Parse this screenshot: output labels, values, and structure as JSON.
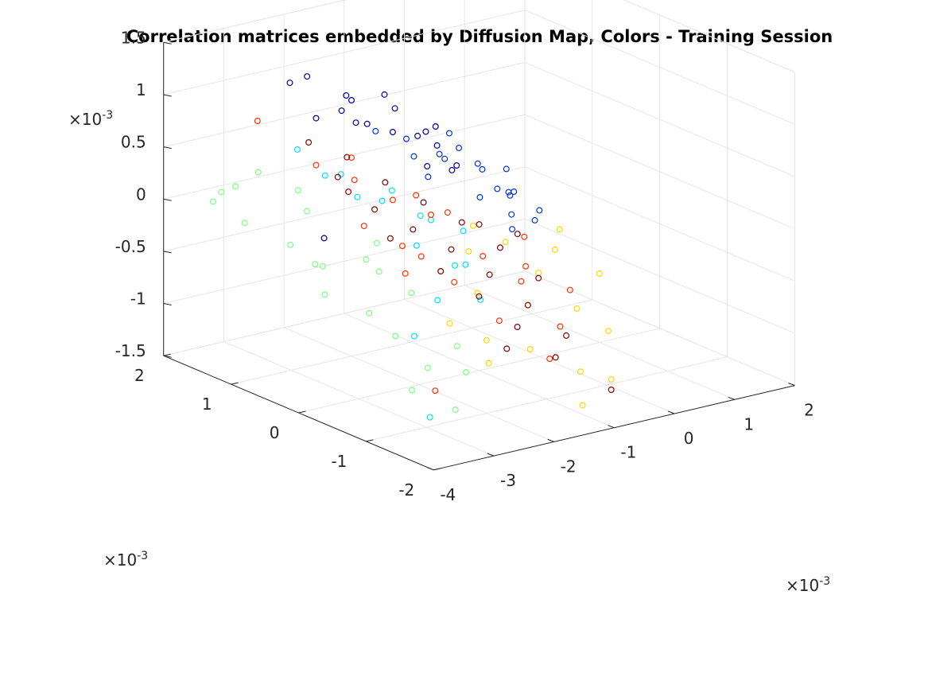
{
  "chart_data": {
    "type": "scatter",
    "title": "Correlation matrices embedded by Diffusion Map, Colors - Training Session",
    "colormap": "jet",
    "grid": true,
    "marker": "open-circle",
    "axes": {
      "z": {
        "ticks": [
          -1.5,
          -1,
          -0.5,
          0,
          0.5,
          1,
          1.5
        ],
        "tick_labels": [
          "-1.5",
          "-1",
          "-0.5",
          "0",
          "0.5",
          "1",
          "1.5"
        ],
        "range": [
          -1.5,
          1.5
        ],
        "multiplier_base": "×10",
        "multiplier_exp": "-3"
      },
      "left": {
        "ticks": [
          -2,
          -1,
          0,
          1,
          2
        ],
        "tick_labels": [
          "-2",
          "-1",
          "0",
          "1",
          "2"
        ],
        "range": [
          -2,
          2
        ],
        "multiplier_base": "×10",
        "multiplier_exp": "-3"
      },
      "right": {
        "ticks": [
          -4,
          -3,
          -2,
          -1,
          0,
          1,
          2
        ],
        "tick_labels": [
          "-4",
          "-3",
          "-2",
          "-1",
          "0",
          "1",
          "2"
        ],
        "range": [
          -4,
          2
        ],
        "multiplier_base": "×10",
        "multiplier_exp": "-3"
      }
    },
    "series": [
      {
        "color": "#00008f",
        "points": [
          [
            -2.8,
            1.2,
            1.17
          ],
          [
            -2.4,
            1.3,
            1.15
          ],
          [
            -2.2,
            0.9,
            1.05
          ],
          [
            -2.0,
            1.0,
            0.95
          ],
          [
            -2.5,
            0.7,
            1.0
          ],
          [
            -2.3,
            0.5,
            0.9
          ],
          [
            -1.9,
            0.6,
            1.1
          ],
          [
            -2.1,
            0.3,
            0.85
          ],
          [
            -1.8,
            0.2,
            0.8
          ],
          [
            -2.6,
            0.4,
            0.98
          ],
          [
            -2.0,
            -0.1,
            0.95
          ],
          [
            -1.7,
            0.0,
            0.75
          ],
          [
            -2.2,
            -0.3,
            0.7
          ],
          [
            -1.5,
            0.2,
            0.85
          ],
          [
            -1.9,
            -0.4,
            0.65
          ],
          [
            -2.4,
            0.0,
            1.2
          ],
          [
            -1.6,
            -0.2,
            0.6
          ],
          [
            -2.7,
            0.9,
            0.9
          ],
          [
            -3.8,
            -0.2,
            0.2
          ]
        ]
      },
      {
        "color": "#0033d6",
        "points": [
          [
            -1.6,
            1.0,
            0.6
          ],
          [
            -1.3,
            0.7,
            0.4
          ],
          [
            -1.1,
            0.5,
            0.45
          ],
          [
            -1.0,
            0.3,
            0.55
          ],
          [
            -0.8,
            0.2,
            0.4
          ],
          [
            -0.9,
            0.6,
            0.35
          ],
          [
            -0.7,
            0.0,
            0.2
          ],
          [
            -1.2,
            0.9,
            0.5
          ],
          [
            -0.6,
            -0.1,
            0.15
          ],
          [
            -0.5,
            0.4,
            0.25
          ],
          [
            -0.4,
            0.1,
            0.1
          ],
          [
            -1.4,
            0.4,
            0.3
          ],
          [
            -0.2,
            0.2,
            0.05
          ],
          [
            -0.3,
            -0.2,
            -0.1
          ],
          [
            -0.8,
            -0.3,
            0.05
          ],
          [
            -1.1,
            -0.1,
            0.2
          ],
          [
            -0.1,
            0.4,
            0.2
          ],
          [
            0.0,
            0.0,
            -0.1
          ],
          [
            -0.6,
            0.8,
            0.5
          ],
          [
            -0.9,
            -0.4,
            -0.05
          ]
        ]
      },
      {
        "color": "#00e0ff",
        "points": [
          [
            -3.0,
            0.5,
            0.5
          ],
          [
            -2.8,
            0.2,
            0.35
          ],
          [
            -2.5,
            0.1,
            0.3
          ],
          [
            -2.2,
            -0.2,
            0.2
          ],
          [
            -2.0,
            0.4,
            0.25
          ],
          [
            -2.6,
            -0.5,
            0.05
          ],
          [
            -2.3,
            -0.8,
            -0.1
          ],
          [
            -1.9,
            -0.6,
            -0.2
          ],
          [
            -1.6,
            -0.3,
            0.0
          ],
          [
            -2.7,
            -0.9,
            -0.35
          ],
          [
            -3.2,
            -1.0,
            -0.6
          ],
          [
            -2.9,
            1.0,
            0.6
          ],
          [
            -1.8,
            0.0,
            0.05
          ],
          [
            -2.4,
            0.8,
            0.35
          ],
          [
            -2.1,
            -1.0,
            -0.4
          ],
          [
            -3.5,
            -1.5,
            -1.2
          ]
        ]
      },
      {
        "color": "#7dff7d",
        "points": [
          [
            -4.0,
            0.8,
            0.1
          ],
          [
            -3.8,
            0.3,
            0.0
          ],
          [
            -3.6,
            0.0,
            -0.15
          ],
          [
            -3.9,
            -0.3,
            -0.3
          ],
          [
            -3.5,
            -0.6,
            -0.45
          ],
          [
            -3.7,
            1.2,
            0.3
          ],
          [
            -3.3,
            0.5,
            0.2
          ],
          [
            -3.4,
            -0.9,
            -0.6
          ],
          [
            -3.1,
            -0.2,
            -0.1
          ],
          [
            -3.2,
            -1.2,
            -0.85
          ],
          [
            -3.6,
            1.5,
            0.15
          ],
          [
            -3.0,
            0.9,
            0.25
          ],
          [
            -2.8,
            -0.6,
            -0.35
          ],
          [
            -3.8,
            -1.5,
            -0.9
          ],
          [
            -2.9,
            -1.5,
            -0.85
          ],
          [
            -3.4,
            1.8,
            -0.05
          ],
          [
            -3.0,
            -0.3,
            -0.2
          ],
          [
            -3.5,
            0.2,
            -0.2
          ],
          [
            -2.7,
            0.0,
            -0.05
          ],
          [
            -3.3,
            -1.7,
            -1.1
          ],
          [
            -2.6,
            -1.1,
            -0.75
          ],
          [
            -3.1,
            1.4,
            0.3
          ]
        ]
      },
      {
        "color": "#ffd600",
        "points": [
          [
            -2.0,
            -1.0,
            -0.8
          ],
          [
            -1.5,
            -1.2,
            -0.9
          ],
          [
            -1.2,
            -0.9,
            -0.6
          ],
          [
            -0.8,
            -0.7,
            -0.4
          ],
          [
            -0.5,
            -1.0,
            -0.7
          ],
          [
            -0.3,
            -0.5,
            -0.3
          ],
          [
            -1.0,
            -1.5,
            -1.1
          ],
          [
            -0.2,
            -1.2,
            -0.9
          ],
          [
            0.0,
            -0.3,
            -0.2
          ],
          [
            -1.7,
            -0.6,
            -0.5
          ],
          [
            -1.3,
            -1.8,
            -1.3
          ],
          [
            -0.6,
            -1.6,
            -1.2
          ],
          [
            -2.3,
            -1.3,
            -0.9
          ],
          [
            -2.5,
            -0.9,
            -0.6
          ],
          [
            -0.9,
            -0.3,
            -0.2
          ],
          [
            -1.1,
            0.0,
            -0.1
          ],
          [
            0.1,
            -0.8,
            -0.5
          ],
          [
            -1.4,
            -0.2,
            -0.25
          ]
        ]
      },
      {
        "color": "#ff3000",
        "points": [
          [
            -3.0,
            1.5,
            0.75
          ],
          [
            -2.7,
            0.9,
            0.45
          ],
          [
            -2.4,
            0.6,
            0.35
          ],
          [
            -2.1,
            0.3,
            0.2
          ],
          [
            -1.8,
            0.0,
            0.1
          ],
          [
            -2.5,
            -0.2,
            -0.05
          ],
          [
            -1.5,
            -0.5,
            -0.2
          ],
          [
            -2.2,
            -0.7,
            -0.3
          ],
          [
            -1.2,
            -0.8,
            -0.4
          ],
          [
            -1.9,
            -1.1,
            -0.6
          ],
          [
            -0.9,
            -0.6,
            -0.35
          ],
          [
            -1.6,
            0.4,
            0.15
          ],
          [
            -2.8,
            0.1,
            0.1
          ],
          [
            -1.0,
            -1.2,
            -0.75
          ],
          [
            -0.7,
            -0.4,
            -0.15
          ],
          [
            -2.9,
            -0.6,
            -0.15
          ],
          [
            -2.0,
            1.0,
            0.4
          ],
          [
            -1.3,
            0.2,
            0.0
          ],
          [
            -3.3,
            -1.4,
            -1.0
          ],
          [
            -0.5,
            -0.9,
            -0.55
          ],
          [
            -1.4,
            -1.4,
            -0.95
          ],
          [
            -2.3,
            -0.3,
            -0.15
          ]
        ]
      },
      {
        "color": "#800000",
        "points": [
          [
            -2.6,
            1.1,
            0.6
          ],
          [
            -2.3,
            0.8,
            0.5
          ],
          [
            -2.0,
            0.5,
            0.3
          ],
          [
            -1.7,
            0.2,
            0.15
          ],
          [
            -1.4,
            -0.1,
            0.0
          ],
          [
            -1.1,
            -0.4,
            -0.2
          ],
          [
            -0.8,
            -0.7,
            -0.45
          ],
          [
            -2.4,
            0.3,
            0.15
          ],
          [
            -2.1,
            0.0,
            0.0
          ],
          [
            -1.8,
            -0.3,
            -0.15
          ],
          [
            -1.5,
            -0.6,
            -0.35
          ],
          [
            -1.2,
            -0.9,
            -0.6
          ],
          [
            -0.9,
            -1.2,
            -0.85
          ],
          [
            -2.7,
            -0.2,
            0.05
          ],
          [
            -2.2,
            -0.5,
            -0.25
          ],
          [
            -1.9,
            -0.8,
            -0.45
          ],
          [
            -1.6,
            -1.1,
            -0.7
          ],
          [
            -1.3,
            -1.4,
            -0.95
          ],
          [
            -0.6,
            -1.6,
            -1.3
          ],
          [
            -2.5,
            0.6,
            0.25
          ],
          [
            -1.0,
            0.0,
            -0.1
          ],
          [
            -0.7,
            -0.3,
            -0.15
          ],
          [
            -2.9,
            0.4,
            0.5
          ],
          [
            -2.0,
            -1.3,
            -0.8
          ]
        ]
      }
    ]
  }
}
